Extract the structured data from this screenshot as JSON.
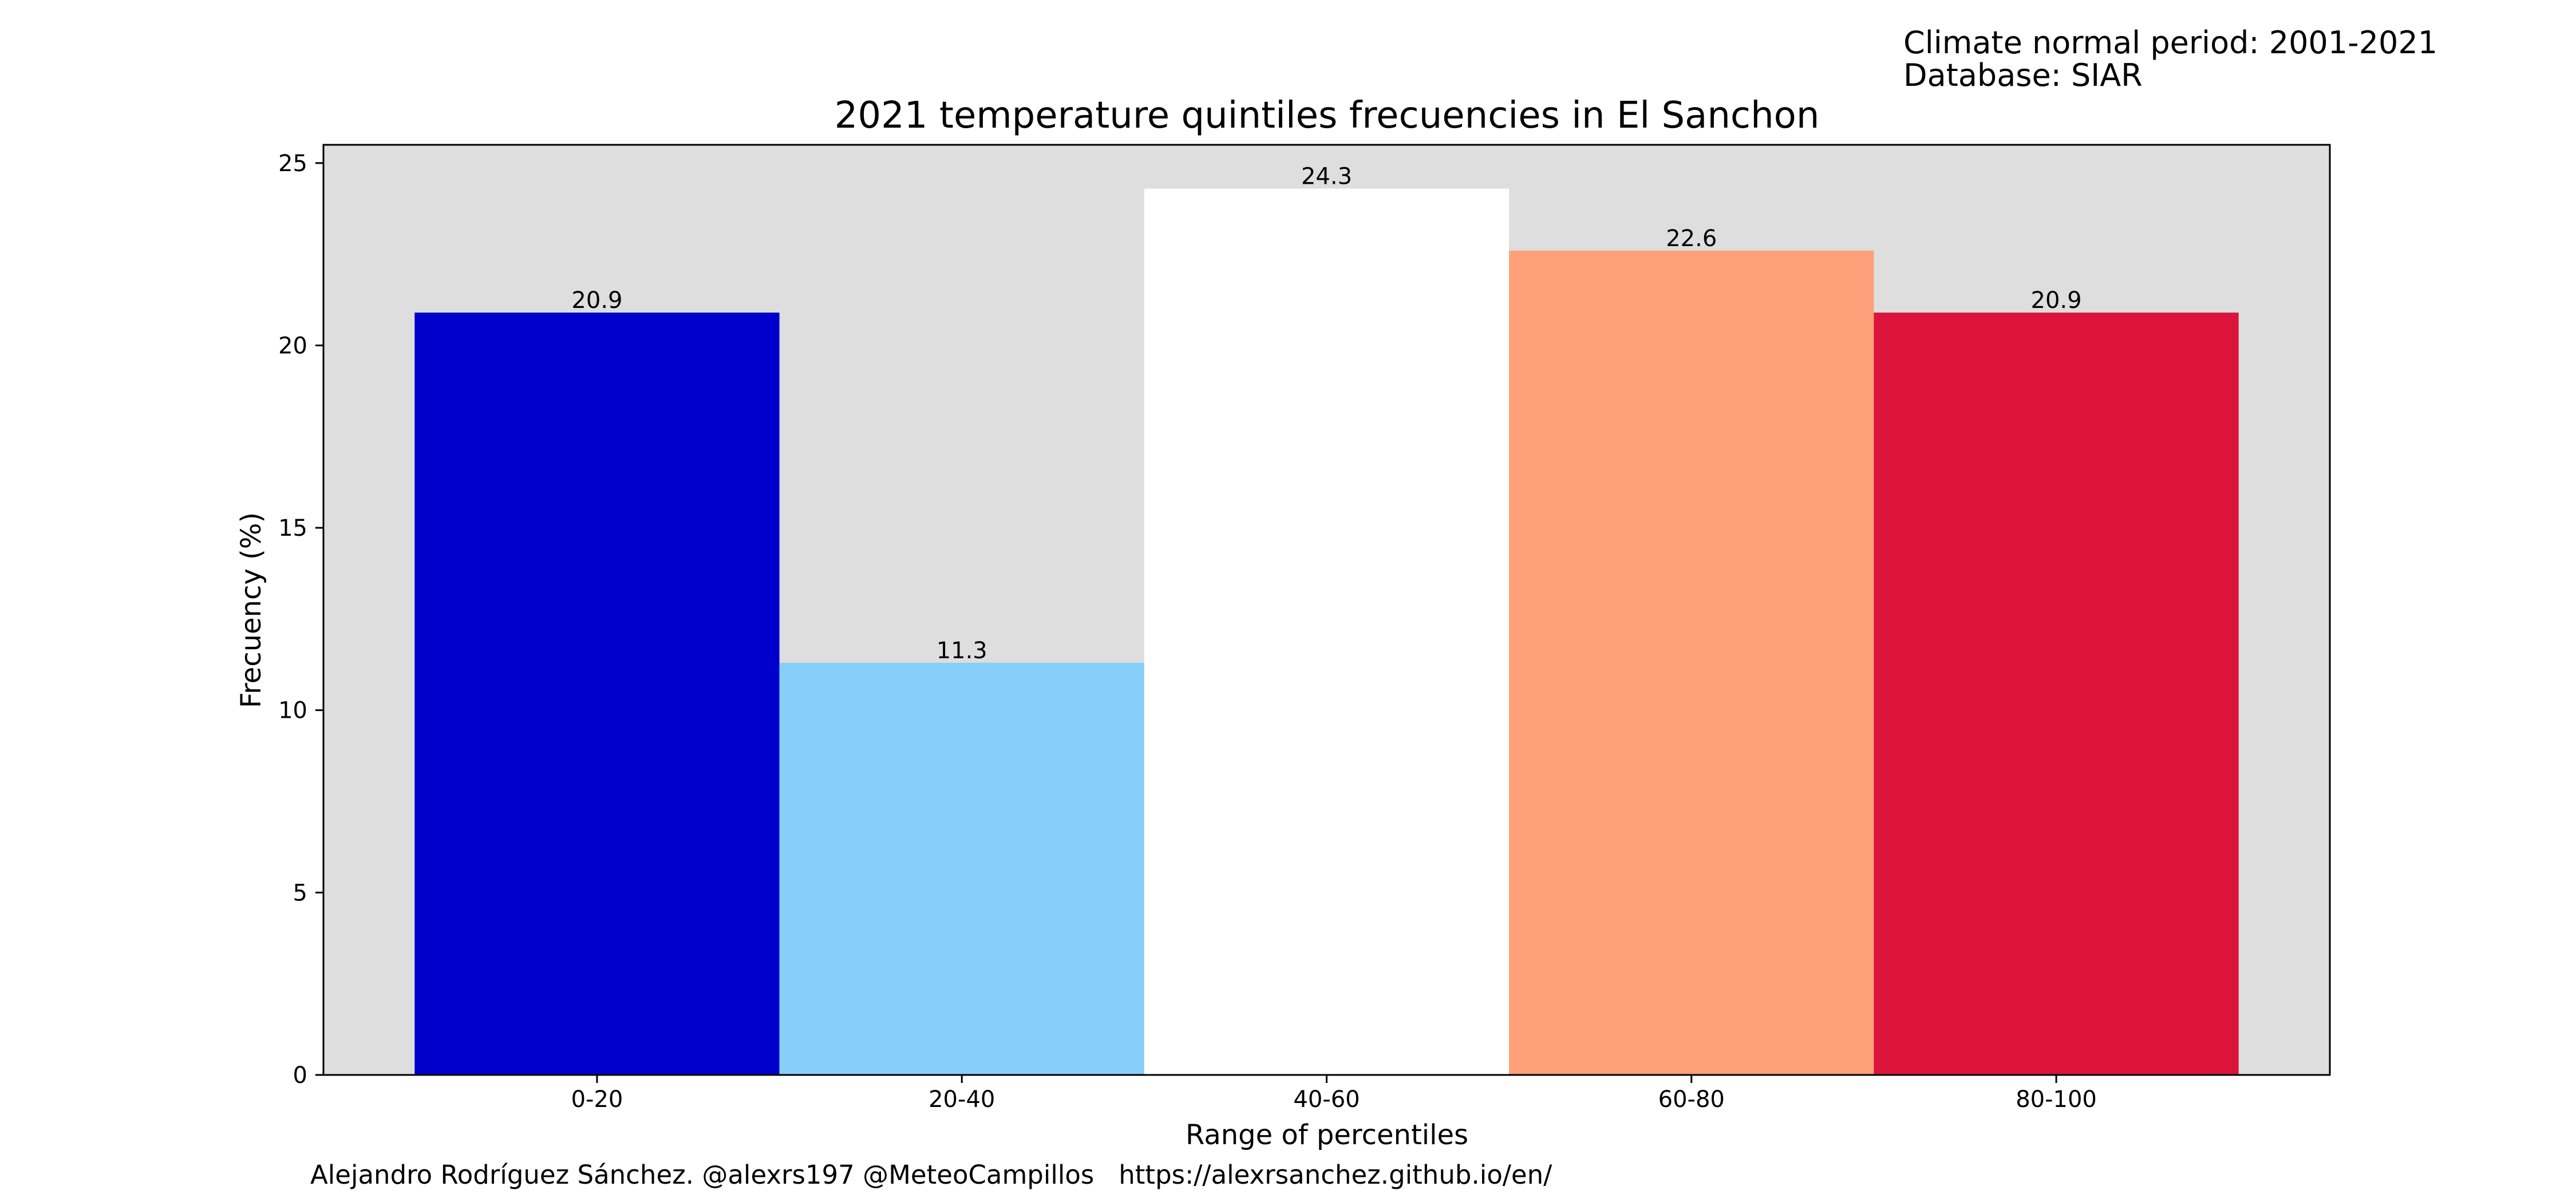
{
  "chart_data": {
    "type": "bar",
    "title": "2021 temperature quintiles frecuencies in El Sanchon",
    "xlabel": "Range of percentiles",
    "ylabel": "Frecuency (%)",
    "categories": [
      "0-20",
      "20-40",
      "40-60",
      "60-80",
      "80-100"
    ],
    "values": [
      20.9,
      11.3,
      24.3,
      22.6,
      20.9
    ],
    "value_labels": [
      "20.9",
      "11.3",
      "24.3",
      "22.6",
      "20.9"
    ],
    "bar_colors": [
      "#0000cd",
      "#87cefa",
      "#ffffff",
      "#ffa07a",
      "#dc143c"
    ],
    "ylim": [
      0,
      25.5
    ],
    "yticks": [
      0,
      5,
      10,
      15,
      20,
      25
    ],
    "ytick_labels": [
      "0",
      "5",
      "10",
      "15",
      "20",
      "25"
    ],
    "xlim": [
      -0.75,
      4.75
    ],
    "grid": false,
    "legend": "none",
    "plot_background": "#dedede"
  },
  "notes": {
    "period": "Climate normal period: 2001-2021",
    "database": "Database: SIAR"
  },
  "credit": "Alejandro Rodríguez Sánchez. @alexrs197 @MeteoCampillos   https://alexrsanchez.github.io/en/"
}
